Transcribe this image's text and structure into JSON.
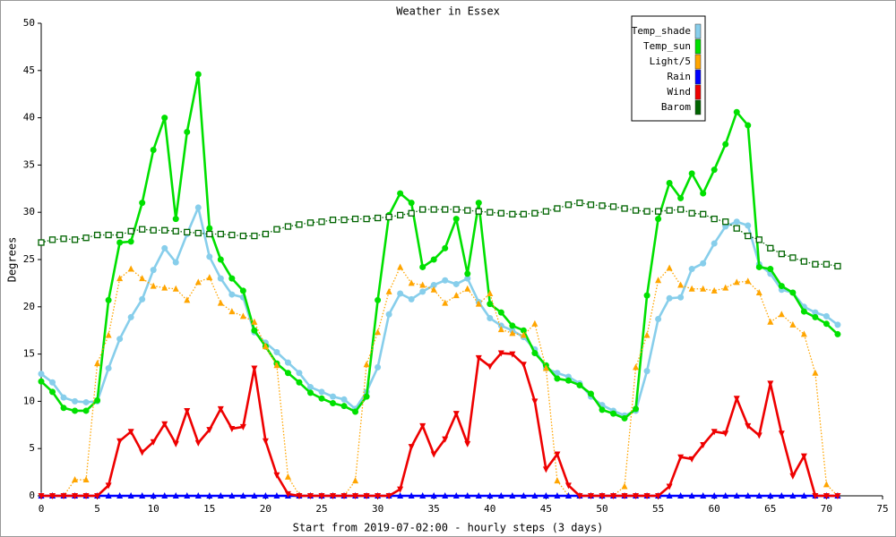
{
  "chart_data": {
    "type": "line",
    "title": "Weather in Essex",
    "x_label": "Start from 2019-07-02:00 - hourly steps (3 days)",
    "y_label": "Degrees",
    "x": [
      0,
      1,
      2,
      3,
      4,
      5,
      6,
      7,
      8,
      9,
      10,
      11,
      12,
      13,
      14,
      15,
      16,
      17,
      18,
      19,
      20,
      21,
      22,
      23,
      24,
      25,
      26,
      27,
      28,
      29,
      30,
      31,
      32,
      33,
      34,
      35,
      36,
      37,
      38,
      39,
      40,
      41,
      42,
      43,
      44,
      45,
      46,
      47,
      48,
      49,
      50,
      51,
      52,
      53,
      54,
      55,
      56,
      57,
      58,
      59,
      60,
      61,
      62,
      63,
      64,
      65,
      66,
      67,
      68,
      69,
      70,
      71
    ],
    "xlim": [
      0,
      75
    ],
    "xticks": [
      0,
      5,
      10,
      15,
      20,
      25,
      30,
      35,
      40,
      45,
      50,
      55,
      60,
      65,
      70,
      75
    ],
    "ylim": [
      0,
      50
    ],
    "yticks": [
      0,
      5,
      10,
      15,
      20,
      25,
      30,
      35,
      40,
      45,
      50
    ],
    "legend": "upper right",
    "series": [
      {
        "name": "Temp_shade",
        "color": "#87ceeb",
        "marker": "circle",
        "line_style": "solid",
        "values": [
          12.9,
          12.0,
          10.4,
          10.0,
          9.9,
          10.0,
          13.5,
          16.6,
          18.9,
          20.8,
          23.9,
          26.2,
          24.7,
          27.7,
          30.5,
          25.3,
          23.0,
          21.3,
          21.0,
          17.3,
          16.2,
          15.2,
          14.1,
          13.0,
          11.5,
          11.0,
          10.5,
          10.2,
          9.2,
          11.0,
          13.6,
          19.2,
          21.4,
          20.8,
          21.6,
          22.3,
          22.8,
          22.4,
          23.0,
          20.5,
          18.8,
          18.0,
          17.5,
          16.8,
          15.5,
          13.5,
          13.0,
          12.6,
          11.9,
          10.5,
          9.6,
          9.0,
          8.5,
          9.0,
          13.2,
          18.7,
          20.9,
          21.0,
          24.0,
          24.6,
          26.7,
          28.5,
          29.0,
          28.6,
          24.5,
          23.5,
          21.8,
          21.5,
          20.0,
          19.4,
          19.0,
          18.1
        ]
      },
      {
        "name": "Temp_sun",
        "color": "#00e000",
        "marker": "circle",
        "line_style": "solid",
        "values": [
          12.1,
          11.0,
          9.3,
          9.0,
          9.0,
          10.1,
          20.7,
          26.8,
          26.9,
          31.0,
          36.6,
          40.0,
          29.3,
          38.5,
          44.6,
          28.3,
          25.0,
          23.0,
          21.7,
          17.5,
          15.8,
          14.0,
          13.0,
          12.0,
          10.9,
          10.3,
          9.8,
          9.5,
          8.9,
          10.5,
          20.7,
          29.7,
          32.0,
          31.0,
          24.2,
          25.0,
          26.2,
          29.3,
          23.5,
          31.0,
          20.3,
          19.4,
          18.0,
          17.5,
          15.1,
          13.8,
          12.4,
          12.2,
          11.7,
          10.8,
          9.1,
          8.7,
          8.2,
          9.2,
          21.2,
          29.3,
          33.1,
          31.5,
          34.1,
          32.0,
          34.5,
          37.2,
          40.6,
          39.2,
          24.2,
          24.0,
          22.2,
          21.5,
          19.5,
          18.9,
          18.2,
          17.1
        ]
      },
      {
        "name": "Light/5",
        "color": "#ffa500",
        "marker": "triangle",
        "line_style": "dotted",
        "values": [
          0,
          0,
          0,
          1.7,
          1.7,
          14.0,
          17.0,
          23.0,
          24.0,
          23.0,
          22.2,
          22.0,
          21.9,
          20.7,
          22.6,
          23.1,
          20.4,
          19.5,
          19.0,
          18.4,
          15.8,
          13.8,
          2.0,
          0.1,
          0,
          0,
          0,
          0,
          1.6,
          13.9,
          17.3,
          21.6,
          24.2,
          22.5,
          22.3,
          21.8,
          20.4,
          21.2,
          21.9,
          20.3,
          21.4,
          17.6,
          17.2,
          17.0,
          18.2,
          13.5,
          1.6,
          0,
          0,
          0,
          0,
          0,
          1.0,
          13.6,
          17.0,
          22.8,
          24.1,
          22.3,
          21.9,
          21.9,
          21.7,
          22.0,
          22.6,
          22.7,
          21.5,
          18.4,
          19.2,
          18.1,
          17.1,
          13.0,
          1.2,
          0
        ]
      },
      {
        "name": "Rain",
        "color": "#0000ff",
        "marker": "triangle",
        "line_style": "solid",
        "values": [
          0,
          0,
          0,
          0,
          0,
          0,
          0,
          0,
          0,
          0,
          0,
          0,
          0,
          0,
          0,
          0,
          0,
          0,
          0,
          0,
          0,
          0,
          0,
          0,
          0,
          0,
          0,
          0,
          0,
          0,
          0,
          0,
          0,
          0,
          0,
          0,
          0,
          0,
          0,
          0,
          0,
          0,
          0,
          0,
          0,
          0,
          0,
          0,
          0,
          0,
          0,
          0,
          0,
          0,
          0,
          0,
          0,
          0,
          0,
          0,
          0,
          0,
          0,
          0,
          0,
          0,
          0,
          0,
          0,
          0,
          0,
          0
        ]
      },
      {
        "name": "Wind",
        "color": "#ee0000",
        "marker": "triangle-down",
        "line_style": "solid",
        "values": [
          0,
          0,
          0,
          0,
          0,
          0,
          1.1,
          5.8,
          6.8,
          4.6,
          5.7,
          7.6,
          5.5,
          9.0,
          5.6,
          7.0,
          9.2,
          7.1,
          7.3,
          13.5,
          5.8,
          2.2,
          0.2,
          0,
          0,
          0,
          0,
          0,
          0,
          0,
          0,
          0,
          0.7,
          5.2,
          7.4,
          4.4,
          6.0,
          8.7,
          5.5,
          14.6,
          13.7,
          15.1,
          15.0,
          13.9,
          10.0,
          2.8,
          4.4,
          1.1,
          0,
          0,
          0,
          0,
          0,
          0,
          0,
          0,
          1.0,
          4.1,
          3.9,
          5.4,
          6.8,
          6.6,
          10.3,
          7.4,
          6.4,
          11.9,
          6.6,
          2.1,
          4.2,
          0,
          0,
          0
        ]
      },
      {
        "name": "Barom",
        "color": "#006400",
        "marker": "square-open",
        "line_style": "dotted",
        "values": [
          26.8,
          27.1,
          27.2,
          27.1,
          27.3,
          27.6,
          27.6,
          27.6,
          28.0,
          28.2,
          28.1,
          28.1,
          28.0,
          27.9,
          27.8,
          27.7,
          27.7,
          27.6,
          27.5,
          27.5,
          27.7,
          28.2,
          28.5,
          28.7,
          28.9,
          29.0,
          29.2,
          29.2,
          29.3,
          29.3,
          29.4,
          29.5,
          29.7,
          29.9,
          30.3,
          30.3,
          30.3,
          30.3,
          30.2,
          30.1,
          30.0,
          29.9,
          29.8,
          29.8,
          29.9,
          30.1,
          30.4,
          30.8,
          31.0,
          30.8,
          30.7,
          30.6,
          30.4,
          30.2,
          30.1,
          30.1,
          30.2,
          30.3,
          29.9,
          29.8,
          29.3,
          29.0,
          28.3,
          27.5,
          27.1,
          26.2,
          25.6,
          25.2,
          24.8,
          24.5,
          24.5,
          24.3
        ]
      }
    ]
  }
}
